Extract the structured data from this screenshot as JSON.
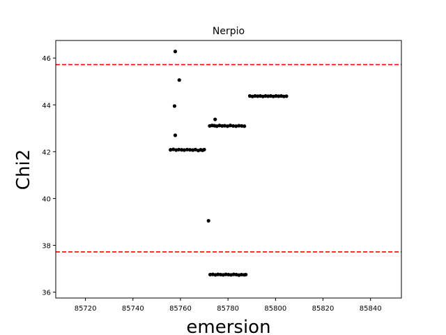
{
  "chart_data": {
    "type": "scatter",
    "title": "Nerpio",
    "xlabel": "emersion",
    "ylabel": "Chi2",
    "xlim": [
      85707.5,
      85853
    ],
    "ylim": [
      35.75,
      46.75
    ],
    "xticks": [
      85720,
      85740,
      85760,
      85780,
      85800,
      85820,
      85840
    ],
    "yticks": [
      36,
      38,
      40,
      42,
      44,
      46
    ],
    "grid": false,
    "point_color": "#000000",
    "reference_line_color": "#ff0000",
    "reference_lines": [
      45.72,
      37.72
    ],
    "series": [
      {
        "points": [
          [
            85757.8,
            46.28
          ],
          [
            85759.5,
            45.06
          ],
          [
            85757.5,
            43.95
          ],
          [
            85757.8,
            42.7
          ],
          [
            85755.8,
            42.08
          ],
          [
            85757.0,
            42.1
          ],
          [
            85758.2,
            42.07
          ],
          [
            85759.3,
            42.09
          ],
          [
            85760.5,
            42.08
          ],
          [
            85761.6,
            42.07
          ],
          [
            85762.8,
            42.09
          ],
          [
            85764.0,
            42.08
          ],
          [
            85765.2,
            42.07
          ],
          [
            85766.3,
            42.09
          ],
          [
            85767.5,
            42.05
          ],
          [
            85768.5,
            42.08
          ],
          [
            85769.3,
            42.06
          ],
          [
            85770.0,
            42.09
          ],
          [
            85771.8,
            39.05
          ],
          [
            85772.3,
            43.1
          ],
          [
            85773.3,
            43.12
          ],
          [
            85774.3,
            43.11
          ],
          [
            85774.6,
            43.38
          ],
          [
            85775.3,
            43.09
          ],
          [
            85776.4,
            43.12
          ],
          [
            85777.5,
            43.1
          ],
          [
            85778.6,
            43.11
          ],
          [
            85779.8,
            43.09
          ],
          [
            85781.0,
            43.12
          ],
          [
            85782.2,
            43.1
          ],
          [
            85783.4,
            43.09
          ],
          [
            85784.6,
            43.11
          ],
          [
            85785.8,
            43.1
          ],
          [
            85786.9,
            43.09
          ],
          [
            85772.5,
            36.75
          ],
          [
            85773.6,
            36.76
          ],
          [
            85774.7,
            36.74
          ],
          [
            85775.8,
            36.76
          ],
          [
            85776.9,
            36.75
          ],
          [
            85778.0,
            36.74
          ],
          [
            85779.1,
            36.76
          ],
          [
            85780.2,
            36.75
          ],
          [
            85781.3,
            36.74
          ],
          [
            85782.4,
            36.76
          ],
          [
            85783.5,
            36.75
          ],
          [
            85784.6,
            36.73
          ],
          [
            85785.7,
            36.75
          ],
          [
            85786.8,
            36.74
          ],
          [
            85787.5,
            36.75
          ],
          [
            85789.2,
            44.38
          ],
          [
            85790.3,
            44.36
          ],
          [
            85791.4,
            44.38
          ],
          [
            85792.5,
            44.37
          ],
          [
            85793.6,
            44.38
          ],
          [
            85794.7,
            44.36
          ],
          [
            85795.8,
            44.38
          ],
          [
            85796.9,
            44.37
          ],
          [
            85798.0,
            44.38
          ],
          [
            85799.1,
            44.36
          ],
          [
            85800.2,
            44.38
          ],
          [
            85801.3,
            44.37
          ],
          [
            85802.4,
            44.38
          ],
          [
            85803.5,
            44.36
          ],
          [
            85804.6,
            44.37
          ]
        ]
      }
    ]
  }
}
